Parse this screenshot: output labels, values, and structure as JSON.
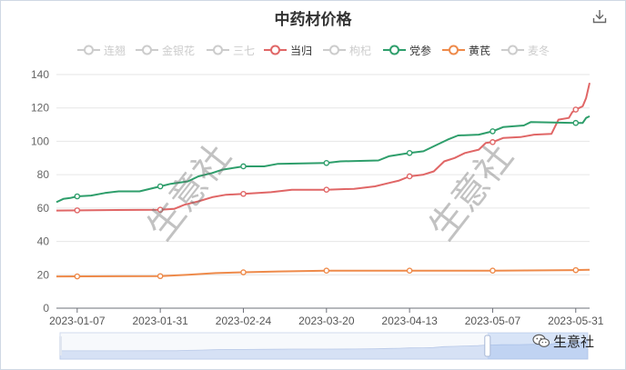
{
  "title": "中药材价格",
  "watermark_text": "生意社",
  "brand_text": "生意社",
  "icons": {
    "download": "download-icon",
    "brand": "wechat-icon"
  },
  "legend": [
    {
      "name": "连翘",
      "active": false,
      "color": "#cccccc"
    },
    {
      "name": "金银花",
      "active": false,
      "color": "#cccccc"
    },
    {
      "name": "三七",
      "active": false,
      "color": "#cccccc"
    },
    {
      "name": "当归",
      "active": true,
      "color": "#e06666"
    },
    {
      "name": "枸杞",
      "active": false,
      "color": "#cccccc"
    },
    {
      "name": "党参",
      "active": true,
      "color": "#2e9e6b"
    },
    {
      "name": "黄芪",
      "active": true,
      "color": "#ee8a4a"
    },
    {
      "name": "麦冬",
      "active": false,
      "color": "#cccccc"
    }
  ],
  "chart_data": {
    "type": "line",
    "title": "中药材价格",
    "ylim": [
      0,
      140
    ],
    "y_ticks": [
      0,
      20,
      40,
      60,
      80,
      100,
      120,
      140
    ],
    "x_range": [
      "2023-01-01",
      "2023-06-04"
    ],
    "x_ticks": [
      "2023-01-07",
      "2023-01-31",
      "2023-02-24",
      "2023-03-20",
      "2023-04-13",
      "2023-05-07",
      "2023-05-31"
    ],
    "grid": true,
    "legend_position": "top",
    "series": [
      {
        "name": "当归",
        "color": "#e06666",
        "points": [
          [
            "2023-01-01",
            58.5
          ],
          [
            "2023-01-15",
            58.8
          ],
          [
            "2023-01-31",
            59.0
          ],
          [
            "2023-02-04",
            59.5
          ],
          [
            "2023-02-07",
            62.0
          ],
          [
            "2023-02-11",
            64.0
          ],
          [
            "2023-02-15",
            66.5
          ],
          [
            "2023-02-19",
            68.0
          ],
          [
            "2023-02-24",
            68.5
          ],
          [
            "2023-03-04",
            69.5
          ],
          [
            "2023-03-10",
            71.0
          ],
          [
            "2023-03-20",
            71.0
          ],
          [
            "2023-03-28",
            71.5
          ],
          [
            "2023-04-03",
            73.0
          ],
          [
            "2023-04-07",
            75.0
          ],
          [
            "2023-04-10",
            76.5
          ],
          [
            "2023-04-13",
            79.0
          ],
          [
            "2023-04-17",
            80.0
          ],
          [
            "2023-04-20",
            82.0
          ],
          [
            "2023-04-23",
            88.0
          ],
          [
            "2023-04-26",
            90.0
          ],
          [
            "2023-04-29",
            93.0
          ],
          [
            "2023-05-03",
            95.0
          ],
          [
            "2023-05-05",
            99.0
          ],
          [
            "2023-05-07",
            99.5
          ],
          [
            "2023-05-10",
            102.0
          ],
          [
            "2023-05-15",
            102.5
          ],
          [
            "2023-05-19",
            104.0
          ],
          [
            "2023-05-24",
            104.5
          ],
          [
            "2023-05-26",
            113.0
          ],
          [
            "2023-05-29",
            114.0
          ],
          [
            "2023-05-30",
            117.5
          ],
          [
            "2023-05-31",
            119.0
          ],
          [
            "2023-06-02",
            121.0
          ],
          [
            "2023-06-03",
            126.0
          ],
          [
            "2023-06-04",
            135.0
          ]
        ],
        "markers": [
          "2023-01-07",
          "2023-01-31",
          "2023-02-24",
          "2023-03-20",
          "2023-04-13",
          "2023-05-07",
          "2023-05-31"
        ]
      },
      {
        "name": "党参",
        "color": "#2e9e6b",
        "points": [
          [
            "2023-01-01",
            63.5
          ],
          [
            "2023-01-03",
            65.5
          ],
          [
            "2023-01-05",
            66.0
          ],
          [
            "2023-01-07",
            67.0
          ],
          [
            "2023-01-11",
            67.5
          ],
          [
            "2023-01-15",
            69.0
          ],
          [
            "2023-01-19",
            70.0
          ],
          [
            "2023-01-25",
            70.0
          ],
          [
            "2023-01-31",
            73.0
          ],
          [
            "2023-02-03",
            74.5
          ],
          [
            "2023-02-08",
            76.0
          ],
          [
            "2023-02-11",
            79.0
          ],
          [
            "2023-02-15",
            81.0
          ],
          [
            "2023-02-18",
            83.0
          ],
          [
            "2023-02-24",
            85.0
          ],
          [
            "2023-03-02",
            85.0
          ],
          [
            "2023-03-06",
            86.5
          ],
          [
            "2023-03-20",
            87.0
          ],
          [
            "2023-03-24",
            88.0
          ],
          [
            "2023-04-04",
            88.5
          ],
          [
            "2023-04-07",
            91.0
          ],
          [
            "2023-04-13",
            93.0
          ],
          [
            "2023-04-17",
            94.0
          ],
          [
            "2023-04-20",
            97.0
          ],
          [
            "2023-04-24",
            101.0
          ],
          [
            "2023-04-27",
            103.5
          ],
          [
            "2023-05-03",
            104.0
          ],
          [
            "2023-05-07",
            106.0
          ],
          [
            "2023-05-10",
            108.5
          ],
          [
            "2023-05-16",
            109.5
          ],
          [
            "2023-05-18",
            111.5
          ],
          [
            "2023-05-31",
            111.0
          ],
          [
            "2023-06-02",
            111.0
          ],
          [
            "2023-06-03",
            114.0
          ],
          [
            "2023-06-04",
            115.0
          ]
        ],
        "markers": [
          "2023-01-07",
          "2023-01-31",
          "2023-02-24",
          "2023-03-20",
          "2023-04-13",
          "2023-05-07",
          "2023-05-31"
        ]
      },
      {
        "name": "黄芪",
        "color": "#ee8a4a",
        "points": [
          [
            "2023-01-01",
            19.0
          ],
          [
            "2023-01-31",
            19.2
          ],
          [
            "2023-02-08",
            20.0
          ],
          [
            "2023-02-16",
            21.0
          ],
          [
            "2023-02-24",
            21.5
          ],
          [
            "2023-03-06",
            22.0
          ],
          [
            "2023-03-20",
            22.5
          ],
          [
            "2023-04-13",
            22.5
          ],
          [
            "2023-05-07",
            22.5
          ],
          [
            "2023-05-31",
            22.8
          ],
          [
            "2023-06-04",
            23.0
          ]
        ],
        "markers": [
          "2023-01-07",
          "2023-01-31",
          "2023-02-24",
          "2023-03-20",
          "2023-04-13",
          "2023-05-07",
          "2023-05-31"
        ]
      }
    ],
    "datazoom": {
      "start_fraction": 0.0,
      "end_fraction": 0.81
    }
  }
}
